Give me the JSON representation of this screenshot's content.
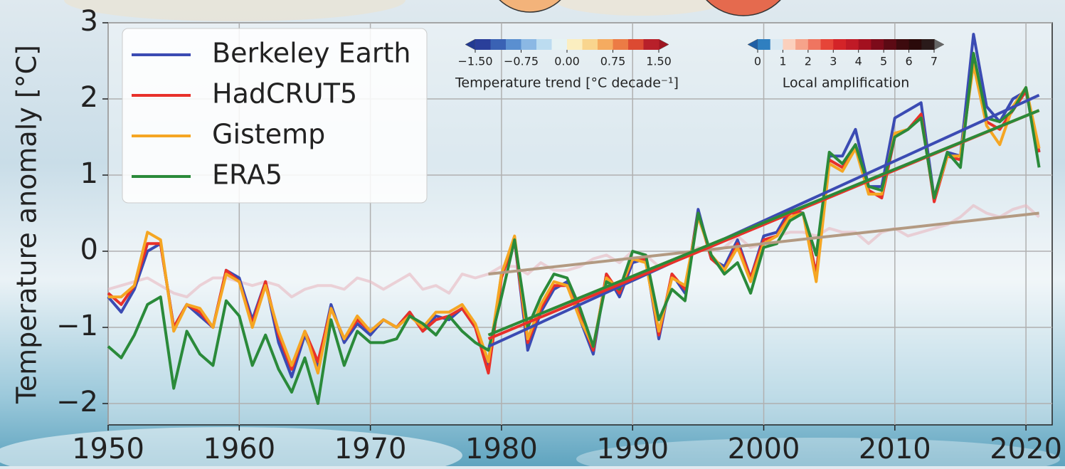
{
  "chart_data": {
    "type": "line",
    "ylabel": "Temperature anomaly [°C]",
    "x": [
      1950,
      1951,
      1952,
      1953,
      1954,
      1955,
      1956,
      1957,
      1958,
      1959,
      1960,
      1961,
      1962,
      1963,
      1964,
      1965,
      1966,
      1967,
      1968,
      1969,
      1970,
      1971,
      1972,
      1973,
      1974,
      1975,
      1976,
      1977,
      1978,
      1979,
      1980,
      1981,
      1982,
      1983,
      1984,
      1985,
      1986,
      1987,
      1988,
      1989,
      1990,
      1991,
      1992,
      1993,
      1994,
      1995,
      1996,
      1997,
      1998,
      1999,
      2000,
      2001,
      2002,
      2003,
      2004,
      2005,
      2006,
      2007,
      2008,
      2009,
      2010,
      2011,
      2012,
      2013,
      2014,
      2015,
      2016,
      2017,
      2018,
      2019,
      2020,
      2021
    ],
    "series": [
      {
        "color": "#e8b8c0",
        "opacity": 0.6,
        "values": [
          -0.5,
          -0.45,
          -0.4,
          -0.35,
          -0.45,
          -0.55,
          -0.6,
          -0.45,
          -0.35,
          -0.35,
          -0.4,
          -0.45,
          -0.4,
          -0.45,
          -0.6,
          -0.5,
          -0.45,
          -0.45,
          -0.5,
          -0.35,
          -0.4,
          -0.5,
          -0.4,
          -0.3,
          -0.5,
          -0.45,
          -0.55,
          -0.3,
          -0.35,
          -0.3,
          -0.2,
          -0.2,
          -0.3,
          -0.15,
          -0.25,
          -0.25,
          -0.2,
          -0.1,
          -0.05,
          -0.15,
          0.0,
          -0.05,
          -0.2,
          -0.15,
          -0.05,
          0.05,
          0.0,
          0.05,
          0.2,
          0.05,
          0.1,
          0.2,
          0.25,
          0.25,
          0.2,
          0.3,
          0.25,
          0.25,
          0.1,
          0.25,
          0.3,
          0.2,
          0.25,
          0.3,
          0.35,
          0.45,
          0.6,
          0.5,
          0.45,
          0.55,
          0.6,
          0.45
        ]
      },
      {
        "name": "Berkeley Earth",
        "color": "#3b4bb3",
        "values": [
          -0.6,
          -0.8,
          -0.5,
          0.0,
          0.1,
          -1.0,
          -0.7,
          -0.85,
          -1.0,
          -0.25,
          -0.35,
          -0.9,
          -0.4,
          -1.2,
          -1.65,
          -1.1,
          -1.5,
          -0.7,
          -1.2,
          -0.95,
          -1.1,
          -0.9,
          -1.0,
          -0.8,
          -1.05,
          -0.85,
          -0.9,
          -0.75,
          -1.0,
          -1.55,
          -0.3,
          0.15,
          -1.3,
          -0.8,
          -0.5,
          -0.4,
          -0.9,
          -1.35,
          -0.3,
          -0.6,
          -0.15,
          -0.1,
          -1.15,
          -0.3,
          -0.55,
          0.55,
          -0.1,
          -0.2,
          0.15,
          -0.35,
          0.2,
          0.25,
          0.55,
          0.5,
          -0.3,
          1.25,
          1.25,
          1.6,
          0.85,
          0.85,
          1.75,
          1.85,
          1.95,
          0.7,
          1.3,
          1.25,
          2.85,
          1.9,
          1.7,
          2.0,
          2.1,
          1.3
        ]
      },
      {
        "name": "HadCRUT5",
        "color": "#e8302a",
        "values": [
          -0.55,
          -0.7,
          -0.45,
          0.1,
          0.1,
          -1.0,
          -0.7,
          -0.8,
          -1.0,
          -0.25,
          -0.4,
          -0.95,
          -0.4,
          -1.1,
          -1.55,
          -1.05,
          -1.45,
          -0.75,
          -1.15,
          -0.9,
          -1.05,
          -0.9,
          -1.0,
          -0.8,
          -1.05,
          -0.9,
          -0.85,
          -0.75,
          -1.0,
          -1.6,
          -0.35,
          0.15,
          -1.2,
          -0.75,
          -0.45,
          -0.45,
          -0.85,
          -1.3,
          -0.3,
          -0.55,
          -0.1,
          -0.1,
          -1.1,
          -0.3,
          -0.5,
          0.5,
          -0.1,
          -0.25,
          0.1,
          -0.35,
          0.15,
          0.2,
          0.5,
          0.5,
          -0.3,
          1.2,
          1.1,
          1.4,
          0.8,
          0.7,
          1.5,
          1.6,
          1.8,
          0.65,
          1.25,
          1.2,
          2.5,
          1.7,
          1.6,
          1.85,
          2.1,
          1.3
        ]
      },
      {
        "name": "Gistemp",
        "color": "#f5a623",
        "values": [
          -0.6,
          -0.6,
          -0.45,
          0.25,
          0.15,
          -1.05,
          -0.7,
          -0.75,
          -1.0,
          -0.3,
          -0.4,
          -1.0,
          -0.45,
          -1.05,
          -1.5,
          -1.05,
          -1.6,
          -0.75,
          -1.15,
          -0.85,
          -1.05,
          -0.9,
          -1.0,
          -0.85,
          -1.0,
          -0.8,
          -0.8,
          -0.7,
          -0.95,
          -1.45,
          -0.3,
          0.2,
          -1.15,
          -0.7,
          -0.4,
          -0.45,
          -0.9,
          -1.25,
          -0.35,
          -0.5,
          -0.1,
          -0.15,
          -1.05,
          -0.35,
          -0.45,
          0.45,
          -0.05,
          -0.25,
          0.05,
          -0.4,
          0.1,
          0.2,
          0.45,
          0.5,
          -0.4,
          1.15,
          1.05,
          1.35,
          0.75,
          0.75,
          1.55,
          1.6,
          1.75,
          0.7,
          1.25,
          1.25,
          2.45,
          1.65,
          1.4,
          1.9,
          2.15,
          1.35
        ]
      },
      {
        "name": "ERA5",
        "color": "#2a8a3a",
        "values": [
          -1.25,
          -1.4,
          -1.1,
          -0.7,
          -0.6,
          -1.8,
          -1.05,
          -1.35,
          -1.5,
          -0.65,
          -0.85,
          -1.5,
          -1.1,
          -1.55,
          -1.85,
          -1.4,
          -2.0,
          -0.9,
          -1.5,
          -1.05,
          -1.2,
          -1.2,
          -1.15,
          -0.85,
          -0.95,
          -1.1,
          -0.85,
          -1.05,
          -1.2,
          -1.3,
          -0.6,
          0.15,
          -1.0,
          -0.6,
          -0.3,
          -0.35,
          -0.75,
          -1.25,
          -0.4,
          -0.5,
          0.0,
          -0.05,
          -0.9,
          -0.5,
          -0.65,
          0.5,
          -0.05,
          -0.3,
          -0.15,
          -0.55,
          0.05,
          0.1,
          0.4,
          0.5,
          -0.05,
          1.3,
          1.15,
          1.4,
          0.85,
          0.8,
          1.5,
          1.6,
          1.75,
          0.7,
          1.3,
          1.1,
          2.6,
          1.75,
          1.7,
          1.85,
          2.15,
          1.1
        ]
      }
    ],
    "trends": [
      {
        "color": "#b39a82",
        "x": [
          1979,
          2021
        ],
        "values": [
          -0.3,
          0.5
        ]
      },
      {
        "color": "#3b4bb3",
        "x": [
          1979,
          2021
        ],
        "values": [
          -1.25,
          2.05
        ]
      },
      {
        "color": "#e8302a",
        "x": [
          1979,
          2021
        ],
        "values": [
          -1.15,
          1.85
        ]
      },
      {
        "color": "#f5a623",
        "x": [
          1979,
          2021
        ],
        "values": [
          -1.1,
          1.85
        ]
      },
      {
        "color": "#2a8a3a",
        "x": [
          1979,
          2021
        ],
        "values": [
          -1.1,
          1.85
        ]
      }
    ],
    "xlim": [
      1950,
      2022
    ],
    "xticks": [
      1950,
      1960,
      1970,
      1980,
      1990,
      2000,
      2010,
      2020
    ],
    "ylim": [
      -2.28,
      3
    ],
    "yticks": [
      {
        "value": -2,
        "label": "−2"
      },
      {
        "value": -1,
        "label": "−1"
      },
      0,
      1,
      2,
      3
    ],
    "grid": true,
    "legend": "upper left",
    "colorbars": [
      {
        "label": "Temperature trend [°C decade⁻¹]",
        "lim": [
          -1.5,
          1.5
        ],
        "ticks": [
          {
            "value": -1.5,
            "label": "−1.50"
          },
          {
            "value": -0.75,
            "label": "−0.75"
          },
          {
            "value": 0,
            "label": "0.00"
          },
          {
            "value": 0.75,
            "label": "0.75"
          },
          {
            "value": 1.5,
            "label": "1.50"
          }
        ],
        "colors": [
          "#223a92",
          "#2a3f9a",
          "#3a62b4",
          "#5a8fd0",
          "#8bb8e4",
          "#bcdcf0",
          "#e6f2f3",
          "#fbeec0",
          "#f9d58e",
          "#f5ab60",
          "#ec7b45",
          "#dc4a32",
          "#b8202a",
          "#9e1622"
        ]
      },
      {
        "label": "Local amplification",
        "lim": [
          0,
          7
        ],
        "ticks": [
          0,
          1,
          2,
          3,
          4,
          5,
          6,
          7
        ],
        "colors": [
          "#1f5fa5",
          "#2f7fc0",
          "#d8e9f3",
          "#fbd0bd",
          "#f6a38a",
          "#ef7560",
          "#e64538",
          "#d42428",
          "#c01a26",
          "#a3101f",
          "#7d0b1a",
          "#5c0a14",
          "#3d0a0e",
          "#2a0a0a",
          "#2a1a1a",
          "#666666"
        ]
      }
    ]
  }
}
